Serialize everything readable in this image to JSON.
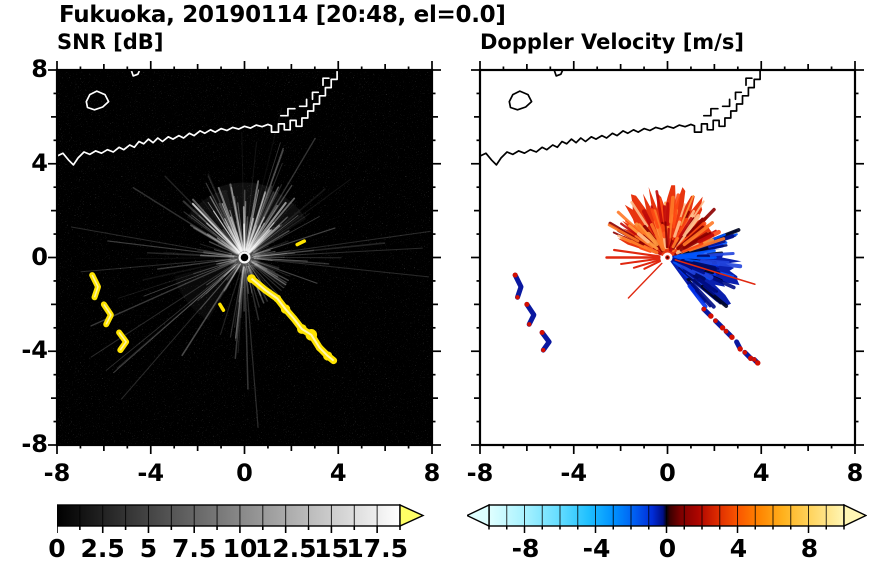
{
  "figure": {
    "title": "Fukuoka, 20190114 [20:48, el=0.0]"
  },
  "panels": {
    "snr": {
      "title": "SNR [dB]"
    },
    "doppler": {
      "title": "Doppler Velocity [m/s]"
    }
  },
  "axes": {
    "x_labels": [
      "-8",
      "-4",
      "0",
      "4",
      "8"
    ],
    "y_labels": [
      "8",
      "4",
      "0",
      "-4",
      "-8"
    ],
    "x_ticks": [
      -8,
      -4,
      0,
      4,
      8
    ],
    "y_ticks": [
      8,
      4,
      0,
      -4,
      -8
    ]
  },
  "colorbars": {
    "snr": {
      "labels": [
        "0",
        "2.5",
        "5",
        "7.5",
        "10",
        "12.5",
        "15",
        "17.5"
      ],
      "min": 0,
      "max": 18.75,
      "segments": 15,
      "gradient": [
        [
          0,
          "#000000"
        ],
        [
          1,
          "#ffffff"
        ]
      ],
      "overflow_color": "#ffff66"
    },
    "doppler": {
      "labels": [
        "-8",
        "-4",
        "0",
        "4",
        "8"
      ],
      "min": -10,
      "max": 10,
      "segments": 20,
      "gradient": [
        [
          0,
          "#e0ffff"
        ],
        [
          0.1,
          "#a8f2ff"
        ],
        [
          0.2,
          "#62dcff"
        ],
        [
          0.28,
          "#20c0ff"
        ],
        [
          0.35,
          "#0092ff"
        ],
        [
          0.41,
          "#005ef2"
        ],
        [
          0.46,
          "#002cd8"
        ],
        [
          0.49,
          "#000f86"
        ],
        [
          0.5,
          "#05010a"
        ],
        [
          0.51,
          "#3c0000"
        ],
        [
          0.54,
          "#7c0000"
        ],
        [
          0.59,
          "#ad0500"
        ],
        [
          0.64,
          "#da2800"
        ],
        [
          0.7,
          "#fa5500"
        ],
        [
          0.76,
          "#ff8400"
        ],
        [
          0.83,
          "#ffb21e"
        ],
        [
          0.9,
          "#ffd25a"
        ],
        [
          1,
          "#fff6b4"
        ]
      ],
      "under_color": "#ddffff",
      "over_color": "#fff6b4"
    }
  },
  "map": {
    "coast_main": [
      [
        -8.05,
        4.3
      ],
      [
        -7.75,
        4.45
      ],
      [
        -7.5,
        4.15
      ],
      [
        -7.3,
        3.95
      ],
      [
        -7.1,
        4.25
      ],
      [
        -6.85,
        4.5
      ],
      [
        -6.6,
        4.4
      ],
      [
        -6.35,
        4.55
      ],
      [
        -6.1,
        4.45
      ],
      [
        -5.85,
        4.6
      ],
      [
        -5.6,
        4.5
      ],
      [
        -5.35,
        4.7
      ],
      [
        -5.15,
        4.6
      ],
      [
        -4.9,
        4.8
      ],
      [
        -4.7,
        4.7
      ],
      [
        -4.5,
        4.95
      ],
      [
        -4.3,
        4.85
      ],
      [
        -4.1,
        5.05
      ],
      [
        -3.9,
        4.9
      ],
      [
        -3.7,
        5.1
      ],
      [
        -3.5,
        4.95
      ],
      [
        -3.25,
        5.15
      ],
      [
        -3.05,
        5.05
      ],
      [
        -2.8,
        5.2
      ],
      [
        -2.6,
        5.1
      ],
      [
        -2.35,
        5.3
      ],
      [
        -2.15,
        5.2
      ],
      [
        -1.9,
        5.4
      ],
      [
        -1.7,
        5.3
      ],
      [
        -1.45,
        5.45
      ],
      [
        -1.25,
        5.35
      ],
      [
        -1.0,
        5.5
      ],
      [
        -0.75,
        5.42
      ],
      [
        -0.5,
        5.55
      ],
      [
        -0.25,
        5.48
      ],
      [
        0.0,
        5.6
      ],
      [
        0.25,
        5.52
      ],
      [
        0.5,
        5.65
      ],
      [
        0.75,
        5.58
      ],
      [
        1.0,
        5.68
      ],
      [
        1.15,
        5.62
      ],
      [
        1.15,
        5.35
      ],
      [
        1.45,
        5.35
      ],
      [
        1.45,
        5.7
      ],
      [
        1.7,
        5.7
      ],
      [
        1.7,
        5.45
      ],
      [
        1.95,
        5.45
      ],
      [
        1.95,
        5.85
      ],
      [
        2.2,
        5.85
      ],
      [
        2.2,
        5.6
      ],
      [
        2.45,
        5.6
      ],
      [
        2.45,
        5.95
      ],
      [
        2.7,
        5.95
      ],
      [
        2.7,
        6.25
      ],
      [
        2.95,
        6.25
      ],
      [
        2.95,
        6.55
      ],
      [
        3.2,
        6.55
      ],
      [
        3.2,
        6.9
      ],
      [
        3.45,
        6.9
      ],
      [
        3.45,
        7.25
      ],
      [
        3.7,
        7.25
      ],
      [
        3.7,
        7.6
      ],
      [
        3.95,
        7.6
      ],
      [
        3.95,
        8.1
      ]
    ],
    "breakwaters": [
      [
        [
          1.55,
          6.05
        ],
        [
          1.85,
          6.05
        ],
        [
          1.85,
          6.35
        ],
        [
          2.15,
          6.35
        ]
      ],
      [
        [
          2.35,
          6.45
        ],
        [
          2.65,
          6.45
        ],
        [
          2.65,
          6.75
        ]
      ],
      [
        [
          2.9,
          6.75
        ],
        [
          2.9,
          7.05
        ],
        [
          3.15,
          7.05
        ]
      ],
      [
        [
          3.35,
          7.35
        ],
        [
          3.35,
          7.65
        ],
        [
          3.6,
          7.65
        ]
      ]
    ],
    "island": [
      [
        -6.7,
        6.4
      ],
      [
        -6.4,
        6.3
      ],
      [
        -6.05,
        6.42
      ],
      [
        -5.8,
        6.65
      ],
      [
        -5.95,
        6.95
      ],
      [
        -6.3,
        7.1
      ],
      [
        -6.6,
        6.95
      ],
      [
        -6.75,
        6.65
      ]
    ],
    "islet": [
      [
        -4.85,
        8.05
      ],
      [
        -4.75,
        7.75
      ],
      [
        -4.55,
        7.82
      ],
      [
        -4.45,
        8.05
      ]
    ]
  },
  "chart_data": [
    {
      "type": "heatmap",
      "panel": "snr",
      "title": "SNR [dB]",
      "xlim": [
        -8,
        8
      ],
      "ylim": [
        -8,
        8
      ],
      "grid": false,
      "legend": "colorbar below",
      "colormap": {
        "type": "grayscale black to white",
        "min": 0,
        "max": 18.75,
        "tick_step": 1.25,
        "label_step": 2.5,
        "over_range_arrow": "#ffff66"
      },
      "radar_center": [
        0,
        0
      ],
      "echoes": {
        "background": "black (no signal) with low-SNR gray speckle",
        "radial_streaks": {
          "description": "white interference spokes radiating from radar at (0,0); brightest fan toward north",
          "bright_sector_az": [
            30,
            150
          ],
          "shadow_sector_az": [
            -70,
            -20
          ],
          "haze_wedges": [
            [
              32,
              75,
              3.1,
              0.05
            ],
            [
              70,
              112,
              3.2,
              0.06
            ],
            [
              105,
              148,
              3.0,
              0.05
            ],
            [
              195,
              243,
              3.1,
              0.035
            ]
          ],
          "long_streaks": [
            [
              213,
              7.8
            ],
            [
              221,
              7.2
            ],
            [
              229,
              8.0
            ],
            [
              8,
              8.0
            ],
            [
              3,
              7.6
            ],
            [
              -6,
              7.9
            ],
            [
              170,
              7.5
            ],
            [
              185,
              7.0
            ]
          ]
        },
        "clutter_arc": [
          [
            0.3,
            -0.9
          ],
          [
            0.9,
            -1.4
          ],
          [
            1.4,
            -1.75
          ],
          [
            1.75,
            -2.2
          ],
          [
            2.1,
            -2.6
          ],
          [
            2.45,
            -3.05
          ],
          [
            2.85,
            -3.3
          ],
          [
            3.2,
            -3.85
          ],
          [
            3.55,
            -4.2
          ],
          [
            3.8,
            -4.4
          ]
        ],
        "west_patches": [
          [
            [
              -6.5,
              -0.75
            ],
            [
              -6.25,
              -1.25
            ],
            [
              -6.4,
              -1.7
            ]
          ],
          [
            [
              -6.0,
              -2.0
            ],
            [
              -5.7,
              -2.45
            ],
            [
              -5.9,
              -2.85
            ]
          ],
          [
            [
              -5.35,
              -3.2
            ],
            [
              -5.05,
              -3.6
            ],
            [
              -5.3,
              -3.95
            ]
          ]
        ],
        "small_echoes": [
          [
            [
              2.25,
              0.55
            ],
            [
              2.55,
              0.7
            ]
          ],
          [
            [
              -1.05,
              -2.0
            ],
            [
              -0.9,
              -2.25
            ]
          ]
        ]
      }
    },
    {
      "type": "heatmap",
      "panel": "doppler",
      "title": "Doppler Velocity [m/s]",
      "xlim": [
        -8,
        8
      ],
      "ylim": [
        -8,
        8
      ],
      "grid": false,
      "legend": "colorbar below",
      "colormap": {
        "type": "diverging cyan-blue-black-red-yellow",
        "min": -10,
        "max": 10,
        "tick_step": 1,
        "label_step": 4
      },
      "radar_center": [
        0,
        0
      ],
      "echoes": {
        "background": "white (no data)",
        "receding_fan": {
          "sign": "positive (red/orange)",
          "az_range": [
            18,
            162
          ],
          "max_range": 2.9
        },
        "approaching_fan": {
          "sign": "negative (dark blue/navy)",
          "az_range": [
            -54,
            22
          ],
          "max_range": 3.3
        },
        "west_streaks": [
          {
            "az": 172,
            "r": 2.3,
            "w": 2.2
          },
          {
            "az": 180,
            "r": 2.6,
            "w": 2.5
          },
          {
            "az": 188,
            "r": 2.0,
            "w": 2.0
          },
          {
            "az": 197,
            "r": 1.5,
            "w": 2.0
          },
          {
            "az": 206,
            "r": 1.1,
            "w": 2.0
          },
          {
            "az": 226,
            "r": 2.4,
            "w": 1.4
          },
          {
            "az": -17,
            "r": 3.9,
            "w": 1.5
          }
        ],
        "arc_segments": [
          [
            [
              1.55,
              -2.2
            ],
            [
              1.85,
              -2.5
            ]
          ],
          [
            [
              2.05,
              -2.7
            ],
            [
              2.35,
              -3.0
            ]
          ],
          [
            [
              2.5,
              -3.15
            ],
            [
              2.75,
              -3.4
            ]
          ],
          [
            [
              2.95,
              -3.6
            ],
            [
              3.1,
              -3.9
            ]
          ],
          [
            [
              3.3,
              -4.05
            ],
            [
              3.55,
              -4.3
            ]
          ],
          [
            [
              3.7,
              -4.35
            ],
            [
              3.85,
              -4.5
            ]
          ]
        ],
        "west_patches_note": "same locations as SNR west patches; navy cores with red fringes"
      }
    }
  ]
}
